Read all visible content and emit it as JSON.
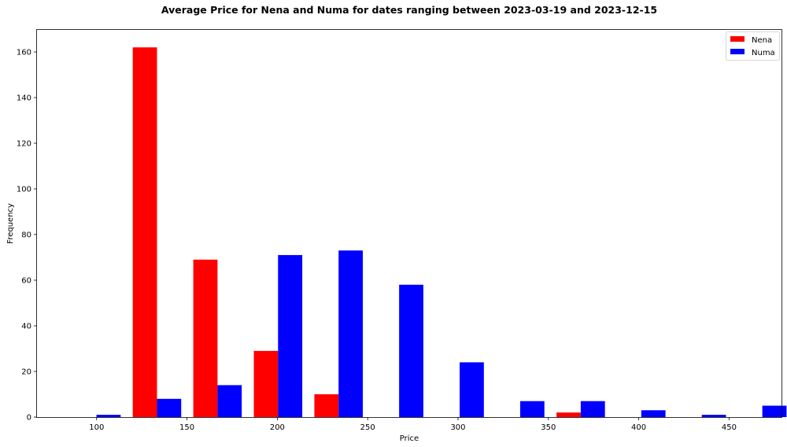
{
  "chart_data": {
    "type": "bar",
    "title": "Average Price for Nena and Numa for dates ranging between 2023-03-19 and 2023-12-15",
    "xlabel": "Price",
    "ylabel": "Frequency",
    "xlim": [
      67,
      479
    ],
    "ylim": [
      0,
      170
    ],
    "x_ticks": [
      "100",
      "150",
      "200",
      "250",
      "300",
      "350",
      "400",
      "450"
    ],
    "y_ticks": [
      "0",
      "20",
      "40",
      "60",
      "80",
      "100",
      "120",
      "140",
      "160"
    ],
    "grid": false,
    "legend_position": "top-right",
    "bin_edges": [
      86.5,
      120.0,
      153.5,
      187.0,
      220.5,
      254.0,
      287.5,
      321.0,
      354.5,
      388.0,
      421.5,
      455.0,
      488.5
    ],
    "series": [
      {
        "name": "Nena",
        "color": "#ff0000",
        "x": [
          120,
          153.5,
          187,
          220.5,
          354.5
        ],
        "values": [
          162,
          69,
          29,
          10,
          2
        ]
      },
      {
        "name": "Numa",
        "color": "#0000ff",
        "x": [
          86.5,
          120,
          153.5,
          187,
          220.5,
          254,
          287.5,
          321,
          354.5,
          388,
          421.5,
          455
        ],
        "values": [
          1,
          8,
          14,
          71,
          73,
          58,
          24,
          7,
          7,
          3,
          1,
          5
        ]
      }
    ]
  }
}
